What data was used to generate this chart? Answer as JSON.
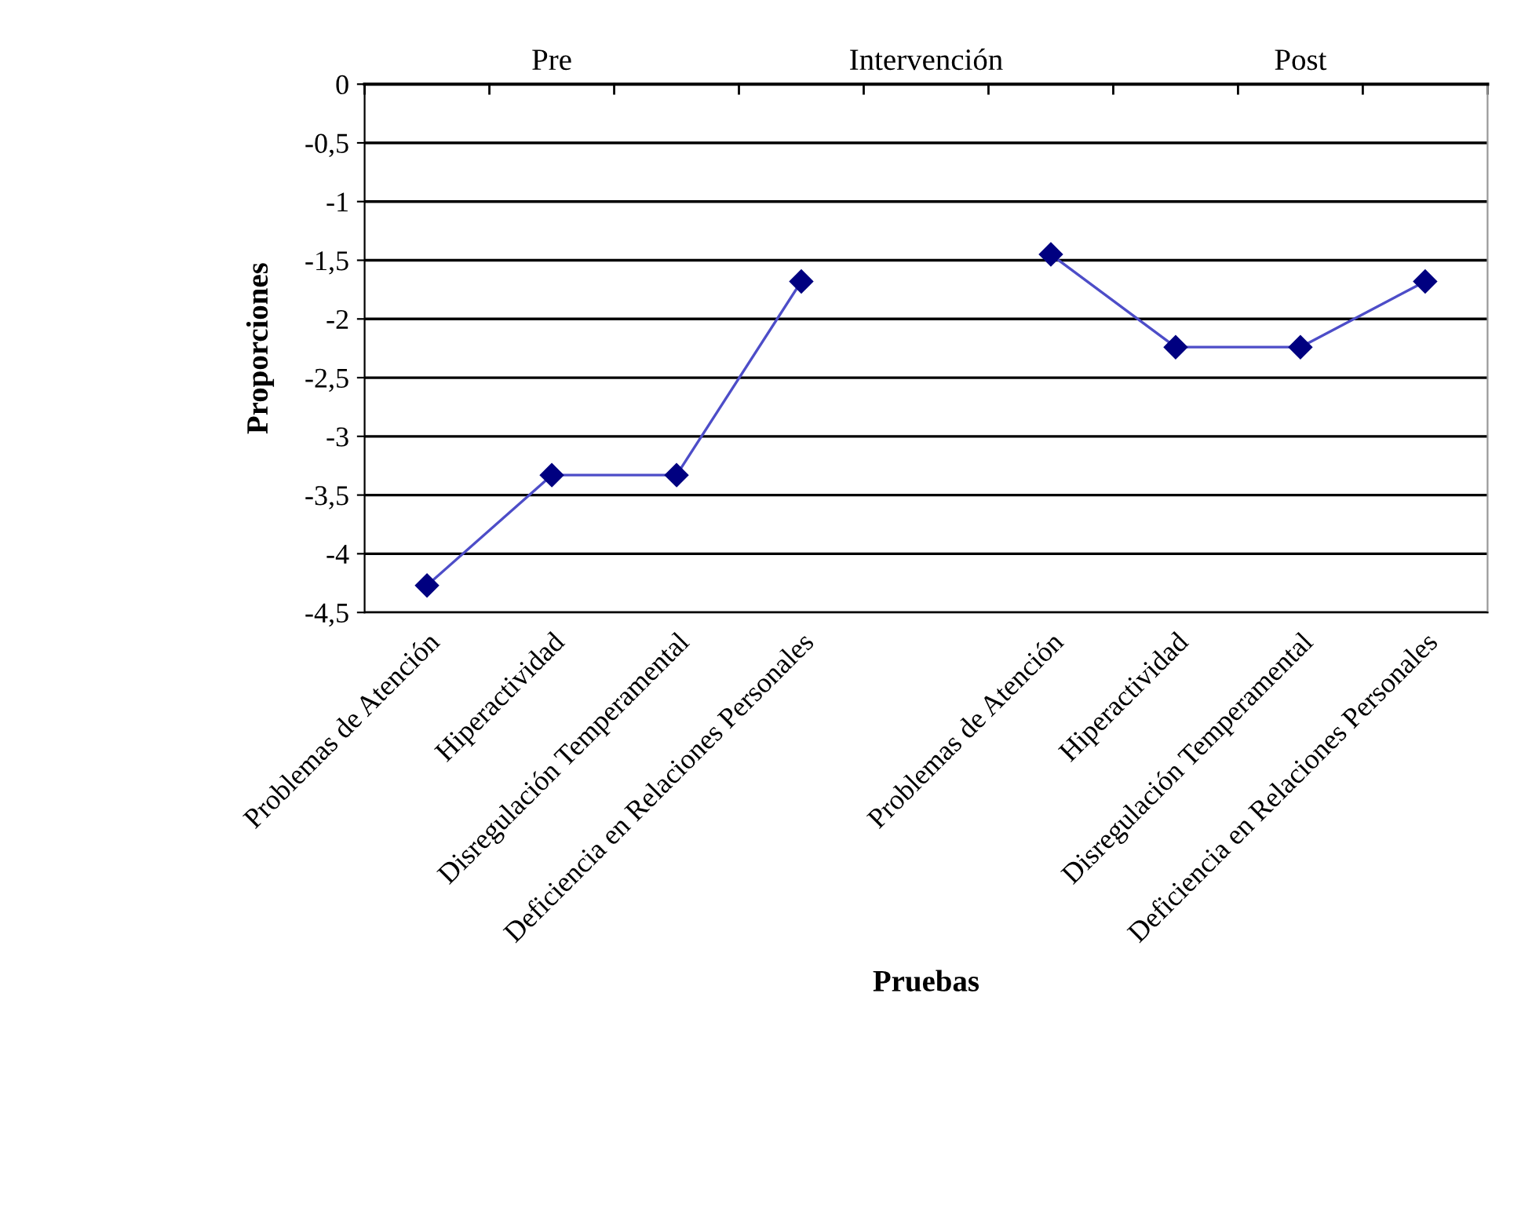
{
  "chart_data": {
    "type": "line",
    "xlabel": "Pruebas",
    "ylabel": "Proporciones",
    "categories": [
      "Problemas de Atención",
      "Hiperactividad",
      "Disregulación Temperamental",
      "Deficiencia en Relaciones Personales",
      null,
      "Problemas de Atención",
      "Hiperactividad",
      "Disregulación Temperamental",
      "Deficiencia en Relaciones Personales"
    ],
    "series": [
      {
        "color": "#000080",
        "values": [
          -4.27,
          -3.33,
          -3.33,
          -1.68,
          null,
          -1.45,
          -2.24,
          -2.24,
          -1.68
        ]
      }
    ],
    "annotations": [
      "Pre",
      "Intervención",
      "Post"
    ],
    "ylim": [
      -4.5,
      0
    ],
    "yticks": [
      0,
      {
        "value": -0.5,
        "label": "-0,5"
      },
      -1,
      {
        "value": -1.5,
        "label": "-1,5"
      },
      -2,
      {
        "value": -2.5,
        "label": "-2,5"
      },
      -3,
      {
        "value": -3.5,
        "label": "-3,5"
      },
      -4,
      {
        "value": -4.5,
        "label": "-4,5"
      }
    ],
    "grid": "y",
    "marker": "diamond",
    "line_style": "solid",
    "legend": false
  }
}
